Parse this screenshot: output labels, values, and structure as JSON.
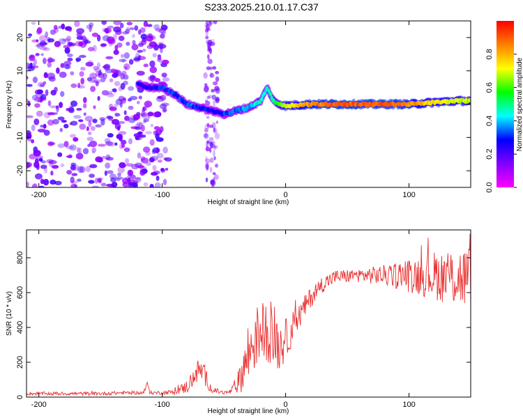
{
  "title": "S233.2025.210.01.17.C37",
  "chart_data": [
    {
      "type": "heatmap",
      "xlabel": "Height of straight line (km)",
      "ylabel": "Frequency (Hz)",
      "xlim": [
        -210,
        150
      ],
      "ylim": [
        -25,
        25
      ],
      "x_ticks": [
        -200,
        -100,
        0,
        100
      ],
      "y_ticks": [
        -20,
        -10,
        0,
        10,
        20
      ],
      "colorbar": {
        "label": "Normalized spectral amplitude",
        "range": [
          0.0,
          1.0
        ],
        "ticks": [
          0.0,
          0.2,
          0.4,
          0.6,
          0.8
        ],
        "colormap": [
          "#ff00ff",
          "#8000ff",
          "#0000ff",
          "#00ffff",
          "#00ff00",
          "#ffff00",
          "#ff8000",
          "#ff0000"
        ]
      },
      "ridge": {
        "x": [
          -120,
          -110,
          -100,
          -90,
          -80,
          -70,
          -60,
          -50,
          -40,
          -30,
          -20,
          -15,
          -10,
          -5,
          0,
          20,
          40,
          60,
          80,
          100,
          120,
          140,
          150
        ],
        "y": [
          6,
          5,
          5,
          3,
          0,
          -1,
          -2,
          -3,
          -2,
          -1,
          1,
          5,
          1,
          0,
          -0.5,
          0,
          0,
          0,
          0,
          0,
          0.5,
          1,
          1
        ],
        "amplitude": [
          0.25,
          0.25,
          0.3,
          0.3,
          0.35,
          0.3,
          0.25,
          0.3,
          0.35,
          0.4,
          0.45,
          0.45,
          0.5,
          0.6,
          0.7,
          0.85,
          0.9,
          0.9,
          0.9,
          0.85,
          0.75,
          0.7,
          0.65
        ]
      },
      "noise_region": {
        "x_range": [
          -210,
          -95
        ],
        "amplitude": 0.1
      },
      "noise_band": {
        "x_range": [
          -65,
          -55
        ],
        "amplitude": 0.1
      }
    },
    {
      "type": "line",
      "xlabel": "Height of straight line (km)",
      "ylabel": "SNR (10 * v/v)",
      "xlim": [
        -210,
        150
      ],
      "ylim": [
        0,
        960
      ],
      "x_ticks": [
        -200,
        -100,
        0,
        100
      ],
      "y_ticks": [
        0,
        200,
        400,
        600,
        800
      ],
      "color": "#e83030",
      "series": [
        {
          "x": [
            -210,
            -190,
            -170,
            -150,
            -130,
            -115,
            -112,
            -110,
            -100,
            -90,
            -80,
            -70,
            -65,
            -60,
            -50,
            -45,
            -40,
            -35,
            -30,
            -25,
            -20,
            -15,
            -10,
            -5,
            0,
            10,
            20,
            30,
            40,
            60,
            80,
            100,
            120,
            140,
            150
          ],
          "y": [
            20,
            20,
            20,
            20,
            25,
            25,
            80,
            25,
            25,
            30,
            60,
            160,
            120,
            40,
            25,
            30,
            60,
            150,
            250,
            330,
            380,
            380,
            350,
            300,
            330,
            450,
            570,
            650,
            690,
            700,
            700,
            700,
            700,
            690,
            680
          ],
          "spread": [
            10,
            10,
            10,
            10,
            10,
            10,
            10,
            10,
            10,
            15,
            40,
            70,
            60,
            20,
            10,
            15,
            40,
            120,
            200,
            180,
            180,
            170,
            200,
            160,
            120,
            80,
            60,
            50,
            40,
            40,
            60,
            100,
            140,
            180,
            200
          ]
        }
      ]
    }
  ]
}
